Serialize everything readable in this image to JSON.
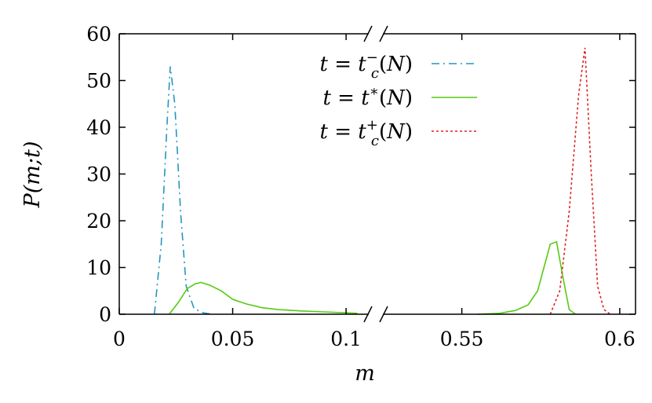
{
  "chart_data": {
    "type": "line",
    "title": "",
    "xlabel": "m",
    "ylabel": "P(m;t)",
    "ylim": [
      0,
      60
    ],
    "y_ticks": [
      "0",
      "10",
      "20",
      "30",
      "40",
      "50",
      "60"
    ],
    "x_axis": {
      "broken": true,
      "segments": [
        {
          "range": [
            0,
            0.11
          ],
          "ticks": [
            "0",
            "0.05",
            "0.1"
          ]
        },
        {
          "range": [
            0.525,
            0.605
          ],
          "ticks": [
            "0.55",
            "0.6"
          ]
        }
      ]
    },
    "grid": false,
    "legend_position": "top-right",
    "legend": [
      {
        "label": "t = t_c^-(N)",
        "color": "#2596be",
        "dash": "dash-dot"
      },
      {
        "label": "t = t^*(N)",
        "color": "#55cc11",
        "dash": "solid"
      },
      {
        "label": "t = t_c^+(N)",
        "color": "#dd2222",
        "dash": "dotted"
      }
    ],
    "series": [
      {
        "name": "t = t_c^-(N)",
        "color": "#2596be",
        "x": [
          0.0155,
          0.0185,
          0.021,
          0.0225,
          0.0245,
          0.027,
          0.0295,
          0.033,
          0.037,
          0.041
        ],
        "y": [
          0,
          15,
          40,
          53,
          45,
          22,
          6,
          1.2,
          0.3,
          0
        ]
      },
      {
        "name": "t = t^*(N)",
        "color": "#55cc11",
        "x": [
          0.022,
          0.026,
          0.03,
          0.0335,
          0.036,
          0.04,
          0.045,
          0.05,
          0.056,
          0.063,
          0.07,
          0.08,
          0.09,
          0.1,
          0.105
        ],
        "y": [
          0,
          2.5,
          5.5,
          6.5,
          6.8,
          6.2,
          5,
          3.2,
          2.2,
          1.4,
          1,
          0.7,
          0.5,
          0.3,
          0.2
        ],
        "x2": [
          0.555,
          0.562,
          0.567,
          0.571,
          0.574,
          0.576,
          0.578,
          0.58,
          0.582,
          0.584,
          0.586
        ],
        "y2": [
          0,
          0.2,
          0.8,
          2,
          5,
          10,
          15,
          15.5,
          8,
          1,
          0
        ]
      },
      {
        "name": "t = t_c^+(N)",
        "color": "#dd2222",
        "x": [
          0.578,
          0.581,
          0.584,
          0.587,
          0.589,
          0.591,
          0.593,
          0.595,
          0.597
        ],
        "y": [
          0,
          5,
          22,
          47,
          57,
          30,
          6,
          1,
          0
        ]
      }
    ]
  }
}
